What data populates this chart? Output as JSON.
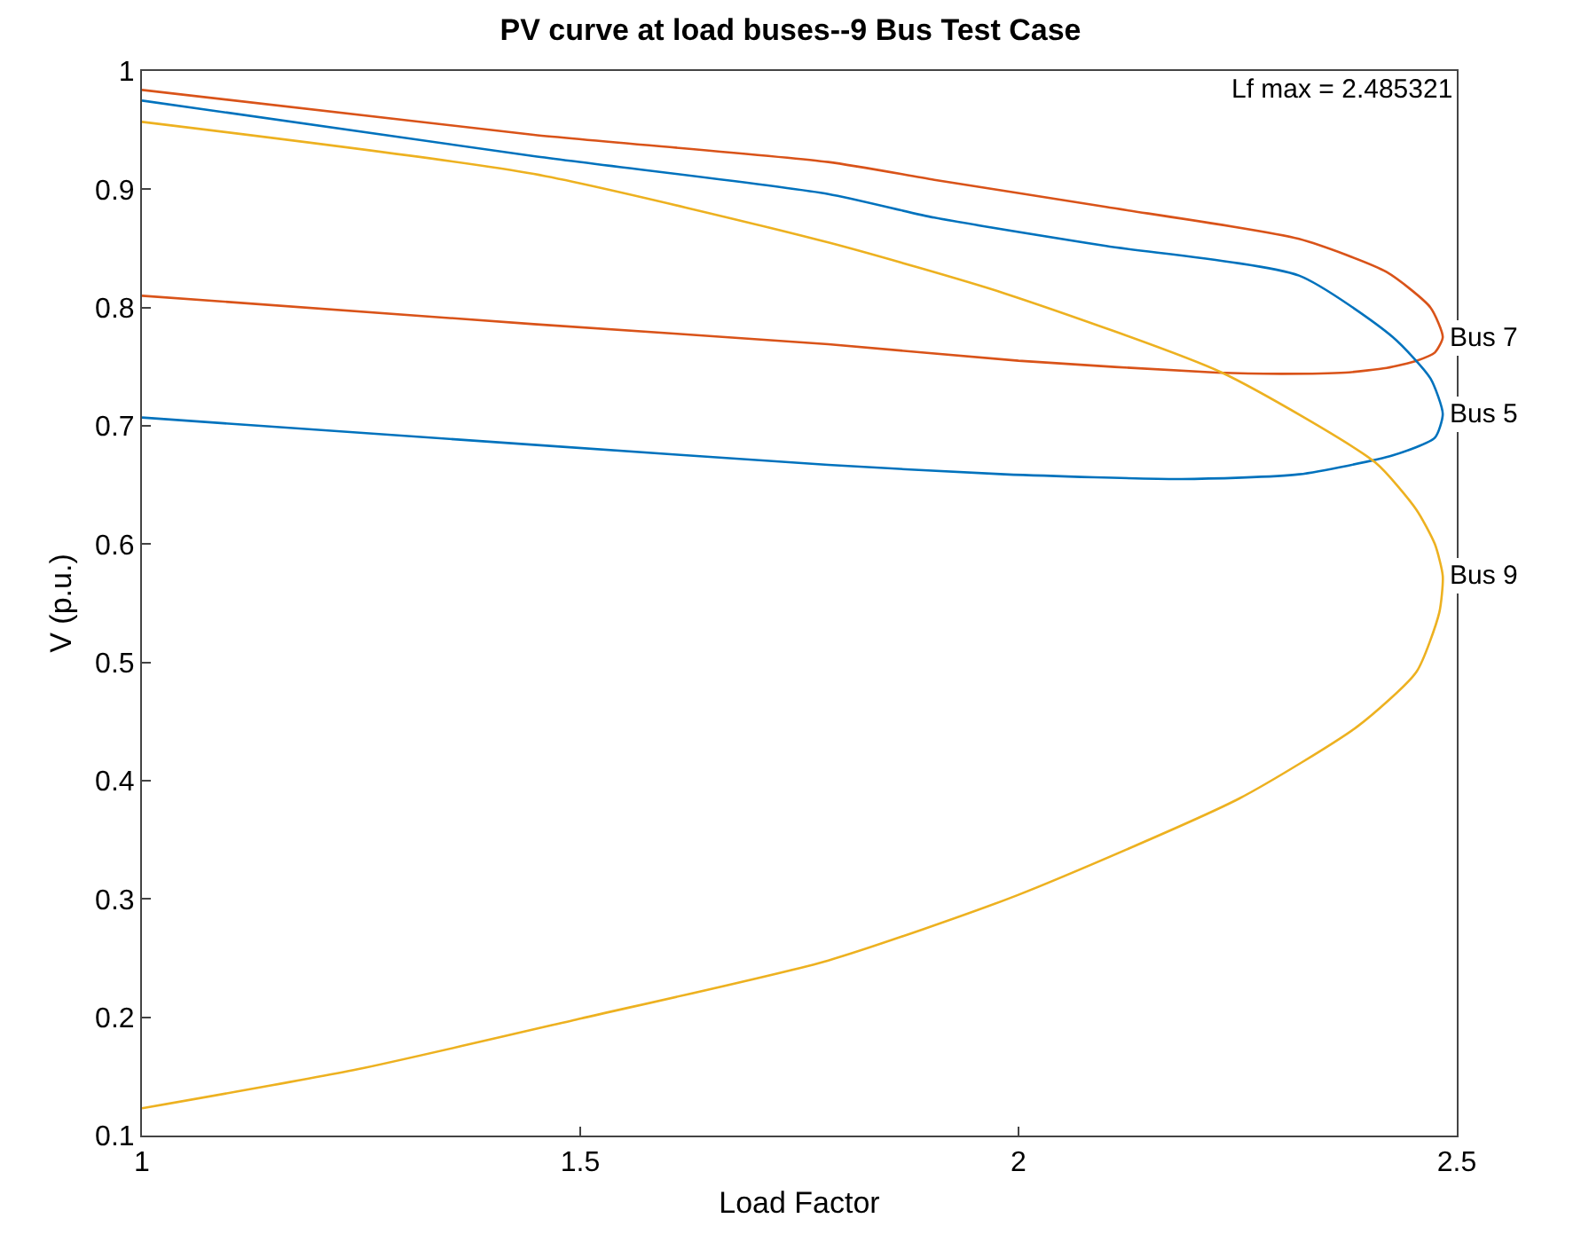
{
  "chart_data": {
    "type": "line",
    "title": "PV curve at load buses--9 Bus Test Case",
    "xlabel": "Load Factor",
    "ylabel": "V (p.u.)",
    "annotations": [
      "Lf max = 2.485321"
    ],
    "xlim": [
      1,
      2.5
    ],
    "xticks": [
      1,
      1.5,
      2,
      2.5
    ],
    "ylim": [
      0.1,
      1
    ],
    "yticks": [
      0.1,
      0.2,
      0.3,
      0.4,
      0.5,
      0.6,
      0.7,
      0.8,
      0.9,
      1
    ],
    "legend": false,
    "marker": "none",
    "line_style": "solid",
    "series": [
      {
        "name": "Bus 7",
        "color": "#d95319",
        "x": [
          1,
          1.447,
          1.783,
          1.904,
          2.1,
          2.32,
          2.42,
          2.47,
          2.484,
          2.475,
          2.454,
          2.42,
          2.373,
          2.3,
          2.226,
          2.0,
          1.783,
          1.447,
          1
        ],
        "values": [
          0.984,
          0.946,
          0.923,
          0.908,
          0.885,
          0.858,
          0.83,
          0.8,
          0.775,
          0.762,
          0.755,
          0.749,
          0.745,
          0.744,
          0.745,
          0.755,
          0.769,
          0.786,
          0.81
        ]
      },
      {
        "name": "Bus 5",
        "color": "#0072bd",
        "x": [
          1,
          1.447,
          1.783,
          1.904,
          2.1,
          2.32,
          2.427,
          2.47,
          2.484,
          2.475,
          2.427,
          2.32,
          2.186,
          1.984,
          1.783,
          1.447,
          1
        ],
        "values": [
          0.975,
          0.928,
          0.896,
          0.876,
          0.852,
          0.827,
          0.775,
          0.74,
          0.71,
          0.69,
          0.675,
          0.659,
          0.655,
          0.659,
          0.667,
          0.684,
          0.707
        ]
      },
      {
        "name": "Bus 9",
        "color": "#edb120",
        "x": [
          1,
          1.447,
          1.783,
          1.984,
          2.232,
          2.407,
          2.454,
          2.475,
          2.484,
          2.48,
          2.454,
          2.387,
          2.252,
          1.998,
          1.783,
          1.501,
          1.246,
          1
        ],
        "values": [
          0.957,
          0.913,
          0.855,
          0.812,
          0.745,
          0.669,
          0.629,
          0.6,
          0.573,
          0.542,
          0.492,
          0.446,
          0.385,
          0.303,
          0.248,
          0.199,
          0.156,
          0.123
        ]
      }
    ]
  }
}
